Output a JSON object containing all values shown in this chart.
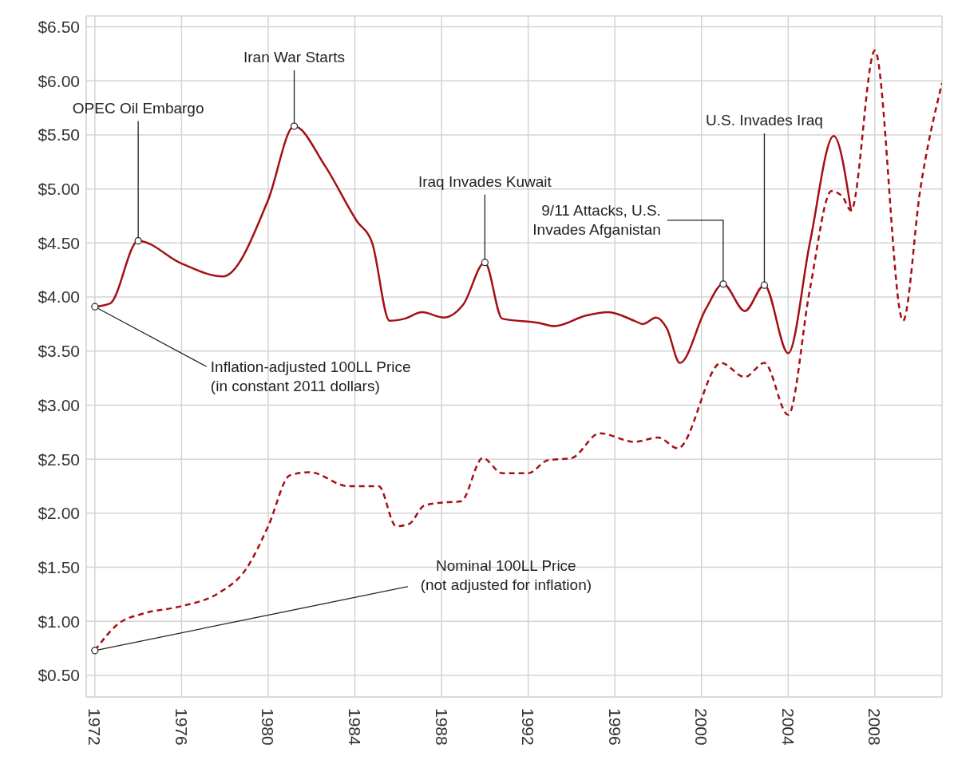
{
  "chart_data": {
    "type": "line",
    "xlim": [
      1971.6,
      2011.1
    ],
    "ylim": [
      0.3,
      6.6
    ],
    "xticks": [
      1972,
      1976,
      1980,
      1984,
      1988,
      1992,
      1996,
      2000,
      2004,
      2008
    ],
    "yticks": [
      {
        "value": 0.5,
        "label": "$0.50"
      },
      {
        "value": 1,
        "label": "$1.00"
      },
      {
        "value": 1.5,
        "label": "$1.50"
      },
      {
        "value": 2,
        "label": "$2.00"
      },
      {
        "value": 2.5,
        "label": "$2.50"
      },
      {
        "value": 3,
        "label": "$3.00"
      },
      {
        "value": 3.5,
        "label": "$3.50"
      },
      {
        "value": 4,
        "label": "$4.00"
      },
      {
        "value": 4.5,
        "label": "$4.50"
      },
      {
        "value": 5,
        "label": "$5.00"
      },
      {
        "value": 5.5,
        "label": "$5.50"
      },
      {
        "value": 6,
        "label": "$6.00"
      },
      {
        "value": 6.5,
        "label": "$6.50"
      }
    ],
    "grid": true,
    "marker": "none",
    "series": [
      {
        "color": "#a50f15",
        "line_style": "solid",
        "x": [
          1972,
          1972.7,
          1974,
          1976,
          1977.9,
          1980,
          1981.2,
          1982.6,
          1984.1,
          1984.8,
          1985.6,
          1986.3,
          1987.1,
          1988.1,
          1989,
          1990,
          1990.8,
          1992.5,
          1993.2,
          1994.7,
          1995.7,
          1996.9,
          1997.3,
          1997.9,
          1998.4,
          1999,
          2000.2,
          2001,
          2002,
          2002.9,
          2004,
          2005,
          2006.1,
          2006.9
        ],
        "values": [
          3.91,
          3.94,
          4.52,
          4.31,
          4.19,
          4.9,
          5.58,
          5.22,
          4.7,
          4.5,
          3.78,
          3.8,
          3.86,
          3.81,
          3.93,
          4.32,
          3.8,
          3.76,
          3.73,
          3.83,
          3.86,
          3.78,
          3.75,
          3.81,
          3.71,
          3.39,
          3.89,
          4.12,
          3.87,
          4.11,
          3.48,
          4.5,
          5.49,
          4.8
        ]
      },
      {
        "color": "#a50f15",
        "line_style": "dashed",
        "x": [
          1972,
          1973.1,
          1974.2,
          1976,
          1977.7,
          1979,
          1980,
          1981,
          1981.9,
          1983.7,
          1985.1,
          1985.9,
          1986.5,
          1987.2,
          1988.1,
          1988.9,
          1989.9,
          1990.8,
          1992,
          1992.9,
          1994,
          1995.3,
          1996.9,
          1998,
          1998.9,
          2000.9,
          2002,
          2002.9,
          2004,
          2005,
          2006,
          2006.5,
          2006.9,
          2008,
          2009.3,
          2010.1,
          2011.1
        ],
        "values": [
          0.73,
          0.98,
          1.07,
          1.14,
          1.26,
          1.49,
          1.88,
          2.35,
          2.38,
          2.25,
          2.25,
          1.88,
          1.9,
          2.07,
          2.1,
          2.11,
          2.51,
          2.37,
          2.37,
          2.49,
          2.51,
          2.74,
          2.66,
          2.7,
          2.6,
          3.39,
          3.26,
          3.39,
          2.91,
          4.07,
          4.98,
          4.93,
          4.8,
          6.28,
          3.78,
          5.0,
          5.98
        ]
      }
    ],
    "annotations": [
      {
        "text": "OPEC Oil Embargo",
        "x": 1974,
        "y": 4.52
      },
      {
        "text": "Iran War Starts",
        "x": 1981.2,
        "y": 5.58
      },
      {
        "text": "Iraq Invades Kuwait",
        "x": 1990,
        "y": 4.32
      },
      {
        "text": "9/11 Attacks, U.S.\nInvades Afganistan",
        "x": 2001,
        "y": 4.12
      },
      {
        "text": "U.S. Invades Iraq",
        "x": 2002.9,
        "y": 4.11
      },
      {
        "text": "Inflation-adjusted 100LL Price\n(in constant 2011 dollars)",
        "x": 1972,
        "y": 3.91
      },
      {
        "text": "Nominal 100LL Price\n(not adjusted for inflation)",
        "x": 1972,
        "y": 0.73
      }
    ]
  }
}
